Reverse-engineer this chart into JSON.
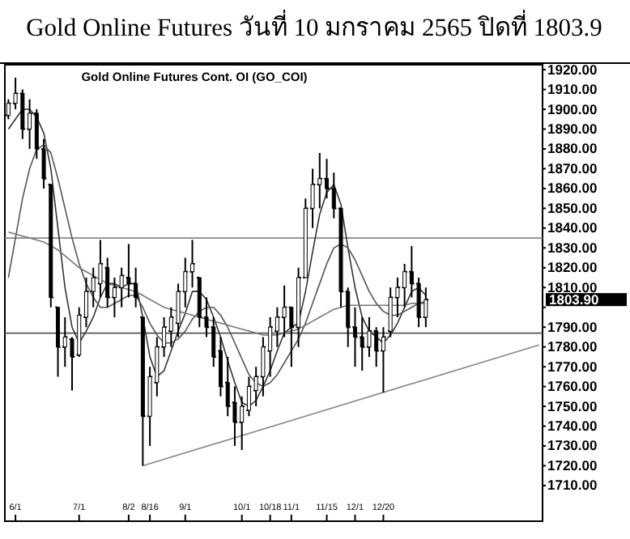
{
  "chart_data": {
    "type": "candlestick",
    "title": "Gold Online Futures วันที่ 10 มกราคม 2565 ปิดที่ 1803.9",
    "subtitle": "Gold Online Futures Cont. OI (GO_COI)",
    "categories": [
      null,
      "6/1",
      null,
      null,
      null,
      null,
      null,
      null,
      null,
      null,
      "7/1",
      null,
      null,
      null,
      null,
      null,
      null,
      "8/2",
      null,
      null,
      "8/16",
      null,
      null,
      null,
      null,
      "9/1",
      null,
      null,
      null,
      null,
      null,
      null,
      null,
      "10/1",
      null,
      null,
      null,
      "10/18",
      null,
      null,
      "11/1",
      null,
      null,
      null,
      null,
      "11/15",
      null,
      null,
      null,
      "12/1",
      null,
      null,
      null,
      "12/20",
      null,
      null,
      null,
      null,
      null,
      null,
      null,
      null,
      null,
      null,
      null,
      null,
      null,
      null,
      null,
      null,
      null,
      null,
      null,
      null,
      null,
      null
    ],
    "color": "#000000",
    "ohlc": [
      [
        1897,
        1905,
        1895,
        1903
      ],
      [
        1903,
        1916,
        1900,
        1908
      ],
      [
        1908,
        1910,
        1885,
        1890
      ],
      [
        1890,
        1905,
        1880,
        1898
      ],
      [
        1898,
        1900,
        1875,
        1880
      ],
      [
        1880,
        1885,
        1860,
        1865
      ],
      [
        1862,
        1862,
        1800,
        1805
      ],
      [
        1800,
        1800,
        1765,
        1780
      ],
      [
        1780,
        1795,
        1770,
        1785
      ],
      [
        1784,
        1785,
        1758,
        1775
      ],
      [
        1776,
        1800,
        1775,
        1796
      ],
      [
        1795,
        1815,
        1790,
        1808
      ],
      [
        1808,
        1820,
        1800,
        1815
      ],
      [
        1812,
        1834,
        1805,
        1822
      ],
      [
        1820,
        1825,
        1800,
        1805
      ],
      [
        1805,
        1815,
        1795,
        1810
      ],
      [
        1810,
        1820,
        1800,
        1816
      ],
      [
        1815,
        1832,
        1805,
        1812
      ],
      [
        1812,
        1820,
        1800,
        1805
      ],
      [
        1795,
        1795,
        1720,
        1745
      ],
      [
        1745,
        1770,
        1730,
        1765
      ],
      [
        1762,
        1785,
        1755,
        1780
      ],
      [
        1780,
        1795,
        1775,
        1790
      ],
      [
        1788,
        1800,
        1780,
        1795
      ],
      [
        1792,
        1812,
        1785,
        1808
      ],
      [
        1808,
        1825,
        1800,
        1818
      ],
      [
        1818,
        1834,
        1810,
        1822
      ],
      [
        1815,
        1815,
        1790,
        1795
      ],
      [
        1795,
        1805,
        1785,
        1790
      ],
      [
        1790,
        1795,
        1770,
        1775
      ],
      [
        1778,
        1785,
        1755,
        1760
      ],
      [
        1762,
        1775,
        1745,
        1750
      ],
      [
        1752,
        1760,
        1730,
        1742
      ],
      [
        1742,
        1755,
        1728,
        1750
      ],
      [
        1748,
        1765,
        1745,
        1760
      ],
      [
        1758,
        1770,
        1750,
        1765
      ],
      [
        1765,
        1785,
        1755,
        1780
      ],
      [
        1778,
        1795,
        1765,
        1790
      ],
      [
        1788,
        1800,
        1780,
        1795
      ],
      [
        1795,
        1811,
        1785,
        1800
      ],
      [
        1800,
        1800,
        1770,
        1790
      ],
      [
        1790,
        1820,
        1780,
        1815
      ],
      [
        1815,
        1855,
        1815,
        1850
      ],
      [
        1850,
        1870,
        1840,
        1862
      ],
      [
        1862,
        1878,
        1850,
        1865
      ],
      [
        1865,
        1875,
        1855,
        1860
      ],
      [
        1860,
        1868,
        1845,
        1850
      ],
      [
        1850,
        1850,
        1800,
        1808
      ],
      [
        1808,
        1810,
        1780,
        1790
      ],
      [
        1790,
        1800,
        1770,
        1785
      ],
      [
        1785,
        1795,
        1768,
        1780
      ],
      [
        1780,
        1795,
        1775,
        1788
      ],
      [
        1788,
        1790,
        1770,
        1778
      ],
      [
        1778,
        1790,
        1757,
        1785
      ],
      [
        1788,
        1810,
        1785,
        1805
      ],
      [
        1805,
        1815,
        1795,
        1810
      ],
      [
        1810,
        1822,
        1800,
        1818
      ],
      [
        1818,
        1831,
        1805,
        1812
      ],
      [
        1812,
        1815,
        1790,
        1795
      ],
      [
        1795,
        1810,
        1790,
        1803.9
      ],
      null,
      null,
      null,
      null,
      null,
      null,
      null,
      null,
      null,
      null,
      null,
      null,
      null,
      null,
      null,
      null
    ],
    "series": [
      {
        "type": "line",
        "color": "#333333",
        "values": [
          1890,
          1895,
          1900,
          1900,
          1896,
          1888,
          1870,
          1840,
          1810,
          1790,
          1782,
          1788,
          1795,
          1805,
          1812,
          1812,
          1810,
          1812,
          1812,
          1795,
          1775,
          1765,
          1768,
          1778,
          1788,
          1797,
          1808,
          1808,
          1804,
          1795,
          1785,
          1773,
          1762,
          1752,
          1750,
          1753,
          1760,
          1768,
          1778,
          1787,
          1790,
          1792,
          1808,
          1828,
          1847,
          1858,
          1862,
          1852,
          1830,
          1810,
          1795,
          1788,
          1785,
          1782,
          1786,
          1792,
          1800,
          1808,
          1810,
          1806,
          null,
          null,
          null,
          null,
          null,
          null,
          null,
          null,
          null,
          null,
          null,
          null,
          null,
          null,
          null,
          null
        ]
      },
      {
        "type": "line",
        "color": "#555555",
        "values": [
          1815,
          1835,
          1855,
          1870,
          1880,
          1882,
          1878,
          1865,
          1850,
          1835,
          1822,
          1812,
          1805,
          1800,
          1800,
          1802,
          1804,
          1806,
          1806,
          1800,
          1792,
          1786,
          1782,
          1782,
          1784,
          1788,
          1794,
          1798,
          1800,
          1800,
          1796,
          1790,
          1782,
          1774,
          1766,
          1762,
          1760,
          1762,
          1766,
          1772,
          1778,
          1784,
          1792,
          1802,
          1812,
          1822,
          1830,
          1832,
          1830,
          1824,
          1816,
          1808,
          1802,
          1798,
          1796,
          1796,
          1798,
          1800,
          1802,
          1803,
          null,
          null,
          null,
          null,
          null,
          null,
          null,
          null,
          null,
          null,
          null,
          null,
          null,
          null,
          null,
          null
        ]
      },
      {
        "type": "line",
        "color": "#777777",
        "values": [
          1838,
          1837,
          1836,
          1835,
          1834,
          1833,
          1831,
          1829,
          1826,
          1823,
          1820,
          1818,
          1816,
          1814,
          1812,
          1811,
          1810,
          1809,
          1808,
          1806,
          1804,
          1802,
          1800,
          1799,
          1798,
          1797,
          1796,
          1795,
          1794,
          1793,
          1792,
          1791,
          1790,
          1789,
          1788,
          1787,
          1786,
          1786,
          1786,
          1787,
          1788,
          1789,
          1791,
          1793,
          1795,
          1797,
          1799,
          1800,
          1801,
          1801,
          1801,
          1801,
          1801,
          1801,
          1801,
          1801,
          1801,
          1802,
          1802,
          1802,
          null,
          null,
          null,
          null,
          null,
          null,
          null,
          null,
          null,
          null,
          null,
          null,
          null,
          null,
          null,
          null
        ]
      },
      {
        "type": "line",
        "color": "#888888",
        "values": [
          null,
          null,
          null,
          null,
          null,
          null,
          null,
          null,
          null,
          null,
          null,
          null,
          null,
          null,
          null,
          null,
          null,
          null,
          null,
          1720,
          null,
          null,
          null,
          null,
          null,
          null,
          null,
          null,
          null,
          null,
          null,
          null,
          null,
          null,
          null,
          null,
          null,
          null,
          null,
          null,
          null,
          null,
          null,
          null,
          null,
          null,
          null,
          null,
          null,
          null,
          null,
          null,
          null,
          null,
          null,
          null,
          null,
          null,
          null,
          null,
          null,
          null,
          null,
          null,
          null,
          null,
          null,
          null,
          null,
          null,
          null,
          null,
          null,
          null,
          null,
          1781
        ]
      }
    ],
    "ref_lines": [
      {
        "axis": "y",
        "value": 1835,
        "color": "#888888"
      },
      {
        "axis": "y",
        "value": 1787,
        "color": "#555555"
      }
    ],
    "annotations": [
      "1803.90"
    ],
    "ylim": [
      1692,
      1922.5
    ],
    "yticks": [
      {
        "value": 1710,
        "label": "1710.00"
      },
      {
        "value": 1720,
        "label": "1720.00"
      },
      {
        "value": 1730,
        "label": "1730.00"
      },
      {
        "value": 1740,
        "label": "1740.00"
      },
      {
        "value": 1750,
        "label": "1750.00"
      },
      {
        "value": 1760,
        "label": "1760.00"
      },
      {
        "value": 1770,
        "label": "1770.00"
      },
      {
        "value": 1780,
        "label": "1780.00"
      },
      {
        "value": 1790,
        "label": "1790.00"
      },
      {
        "value": 1800,
        "label": null
      },
      {
        "value": 1810,
        "label": "1810.00"
      },
      {
        "value": 1820,
        "label": "1820.00"
      },
      {
        "value": 1830,
        "label": "1830.00"
      },
      {
        "value": 1840,
        "label": "1840.00"
      },
      {
        "value": 1850,
        "label": "1850.00"
      },
      {
        "value": 1860,
        "label": "1860.00"
      },
      {
        "value": 1870,
        "label": "1870.00"
      },
      {
        "value": 1880,
        "label": "1880.00"
      },
      {
        "value": 1890,
        "label": "1890.00"
      },
      {
        "value": 1900,
        "label": "1900.00"
      },
      {
        "value": 1910,
        "label": "1910.00"
      },
      {
        "value": 1920,
        "label": "1920.00"
      }
    ],
    "grid": false
  }
}
